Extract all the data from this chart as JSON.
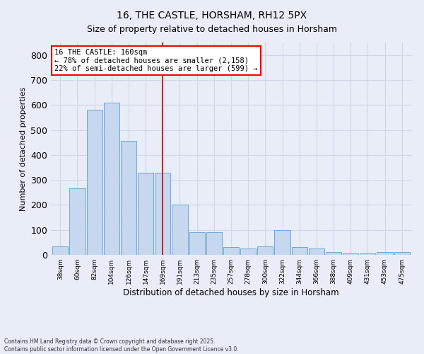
{
  "title": "16, THE CASTLE, HORSHAM, RH12 5PX",
  "subtitle": "Size of property relative to detached houses in Horsham",
  "xlabel": "Distribution of detached houses by size in Horsham",
  "ylabel": "Number of detached properties",
  "bar_labels": [
    "38sqm",
    "60sqm",
    "82sqm",
    "104sqm",
    "126sqm",
    "147sqm",
    "169sqm",
    "191sqm",
    "213sqm",
    "235sqm",
    "257sqm",
    "278sqm",
    "300sqm",
    "322sqm",
    "344sqm",
    "366sqm",
    "388sqm",
    "409sqm",
    "431sqm",
    "453sqm",
    "475sqm"
  ],
  "bar_values": [
    35,
    265,
    580,
    610,
    455,
    330,
    330,
    200,
    90,
    90,
    30,
    25,
    35,
    100,
    30,
    25,
    10,
    5,
    5,
    10,
    10
  ],
  "bar_color": "#c5d8f0",
  "bar_edge_color": "#6aaad4",
  "ylim": [
    0,
    850
  ],
  "yticks": [
    0,
    100,
    200,
    300,
    400,
    500,
    600,
    700,
    800
  ],
  "annotation_title": "16 THE CASTLE: 160sqm",
  "annotation_line1": "← 78% of detached houses are smaller (2,158)",
  "annotation_line2": "22% of semi-detached houses are larger (599) →",
  "redline_index": 6.0,
  "footer_line1": "Contains HM Land Registry data © Crown copyright and database right 2025.",
  "footer_line2": "Contains public sector information licensed under the Open Government Licence v3.0.",
  "bg_color": "#e8edf8",
  "grid_color": "#d0d8e8",
  "title_fontsize": 10,
  "subtitle_fontsize": 9
}
